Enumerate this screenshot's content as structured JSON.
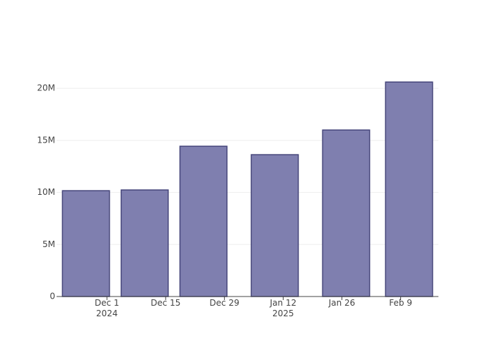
{
  "chart_data": {
    "type": "bar",
    "x": [
      "2024-11-26",
      "2024-12-10",
      "2024-12-24",
      "2025-01-10",
      "2025-01-27",
      "2025-02-11"
    ],
    "values": [
      10170000,
      10240000,
      14440000,
      13630000,
      16000000,
      20610000
    ],
    "color": "#7f7faf",
    "edge_color": "#45457a",
    "xlim": [
      "2024-11-19",
      "2025-02-18"
    ],
    "xticks": [
      {
        "value": "2024-12-01",
        "label": "Dec 1\n2024"
      },
      {
        "value": "2024-12-15",
        "label": "Dec 15"
      },
      {
        "value": "2024-12-29",
        "label": "Dec 29"
      },
      {
        "value": "2025-01-12",
        "label": "Jan 12\n2025"
      },
      {
        "value": "2025-01-26",
        "label": "Jan 26"
      },
      {
        "value": "2025-02-09",
        "label": "Feb 9"
      }
    ],
    "ylim": [
      0,
      21640000
    ],
    "yticks": [
      0,
      {
        "value": 5000000,
        "label": "5M"
      },
      {
        "value": 10000000,
        "label": "10M"
      },
      {
        "value": 15000000,
        "label": "15M"
      },
      {
        "value": 20000000,
        "label": "20M"
      }
    ],
    "grid": true
  }
}
